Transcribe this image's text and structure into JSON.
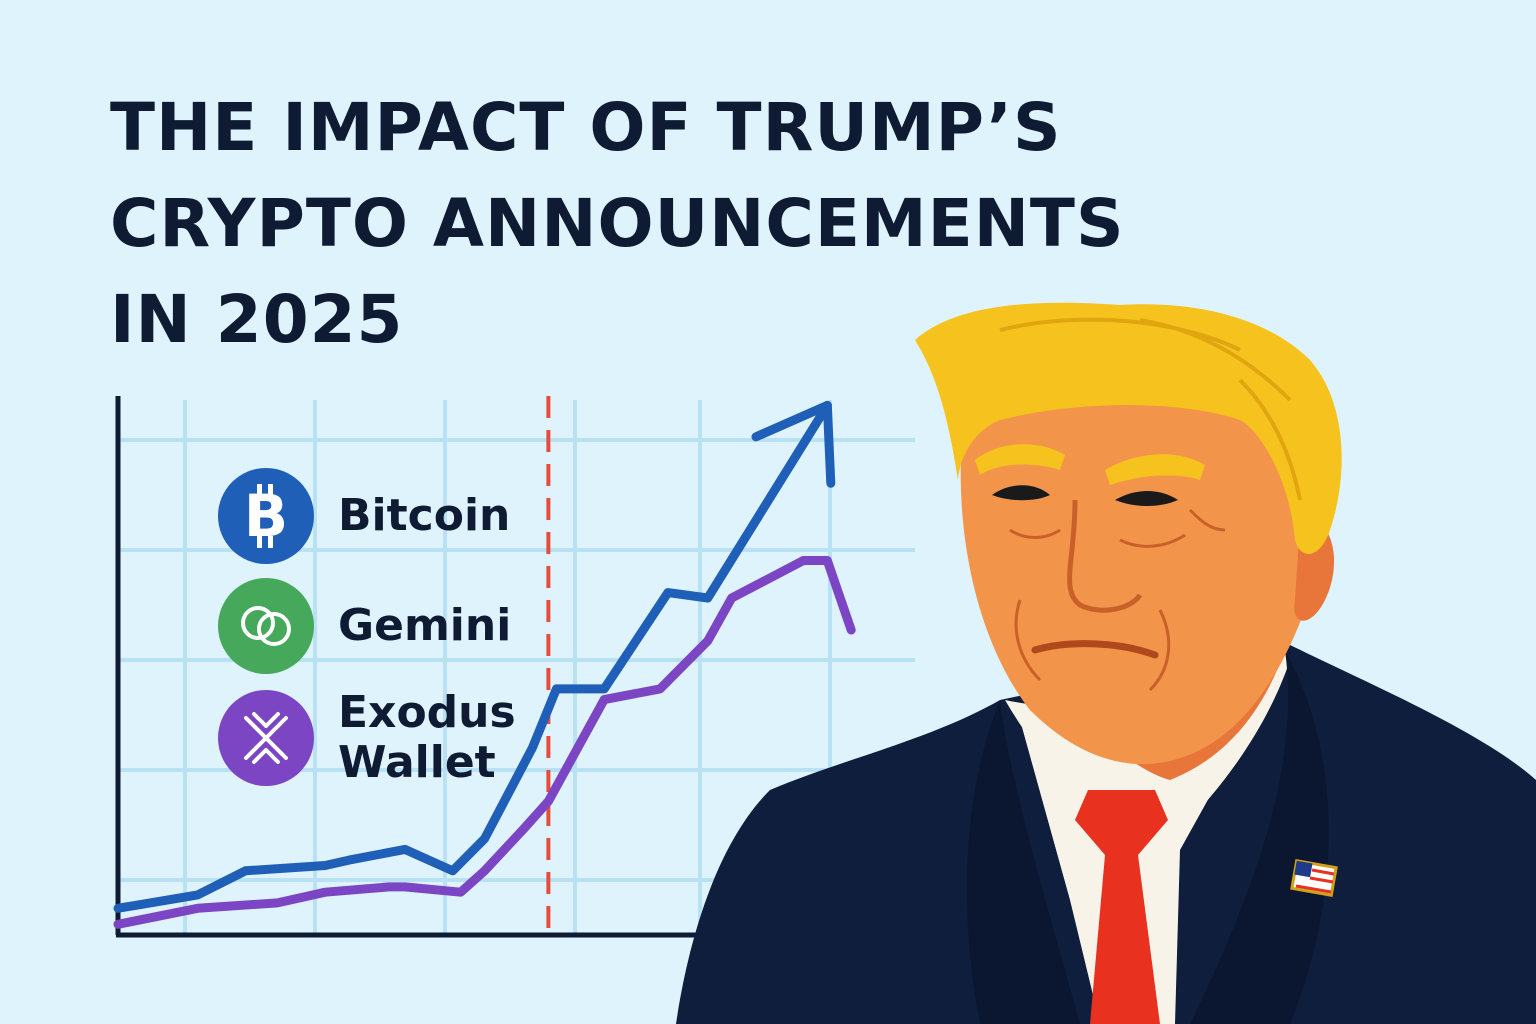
{
  "title_lines": [
    "THE IMPACT OF TRUMP’S",
    "CRYPTO ANNOUNCEMENTS",
    "IN 2025"
  ],
  "legend": [
    {
      "label_lines": [
        "Bitcoin"
      ],
      "icon": "bitcoin-icon",
      "color": "#1f5fb8"
    },
    {
      "label_lines": [
        "Gemini"
      ],
      "icon": "gemini-icon",
      "color": "#46a85a"
    },
    {
      "label_lines": [
        "Exodus",
        "Wallet"
      ],
      "icon": "exodus-icon",
      "color": "#7b45c4"
    }
  ],
  "colors": {
    "background": "#dff3fc",
    "grid": "#b8e2f3",
    "axis": "#0e1b33",
    "announcement_marker": "#e84b3c",
    "bitcoin_line": "#1f5fb8",
    "exodus_line": "#7b45c4"
  },
  "chart_data": {
    "type": "line",
    "title": "THE IMPACT OF TRUMP’S CRYPTO ANNOUNCEMENTS IN 2025",
    "xlabel": "",
    "ylabel": "",
    "grid": true,
    "xlim": [
      0,
      10
    ],
    "ylim": [
      0,
      10
    ],
    "announcement_x": 5.4,
    "series": [
      {
        "name": "Bitcoin",
        "color": "#1f5fb8",
        "arrow": true,
        "x": [
          0,
          1,
          1.6,
          2.6,
          2.9,
          3.6,
          4.2,
          4.6,
          5.2,
          5.5,
          6.1,
          6.9,
          7.4,
          8.9
        ],
        "y": [
          0.5,
          0.75,
          1.2,
          1.3,
          1.4,
          1.6,
          1.2,
          1.8,
          3.5,
          4.6,
          4.6,
          6.4,
          6.3,
          9.9
        ]
      },
      {
        "name": "Exodus Wallet",
        "color": "#7b45c4",
        "x": [
          0,
          1,
          2,
          2.6,
          3.4,
          3.6,
          4.3,
          4.6,
          5.1,
          5.4,
          6.1,
          6.8,
          7.4,
          7.7,
          8.6,
          8.9,
          9.2
        ],
        "y": [
          0.2,
          0.5,
          0.6,
          0.8,
          0.9,
          0.9,
          0.8,
          1.2,
          2.0,
          2.5,
          4.4,
          4.6,
          5.5,
          6.3,
          7.0,
          7.0,
          5.7
        ]
      }
    ]
  }
}
